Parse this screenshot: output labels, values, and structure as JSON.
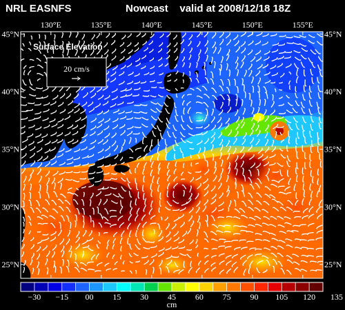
{
  "header": {
    "source": "NRL EASNFS",
    "product": "Nowcast",
    "valid": "valid at 2008/12/18 18Z"
  },
  "map": {
    "field": "Surface Elevation",
    "reference_vector_label": "20 cm/s",
    "lon_ticks": [
      "130°E",
      "135°E",
      "140°E",
      "145°E",
      "150°E",
      "155°E"
    ],
    "lat_ticks": [
      "45°N",
      "40°N",
      "35°N",
      "30°N",
      "25°N"
    ],
    "extent": {
      "lon": [
        127,
        157
      ],
      "lat": [
        23.8,
        45.2
      ]
    }
  },
  "colorbar": {
    "unit": "cm",
    "tick_labels": [
      "−30",
      "−15",
      "00",
      "15",
      "30",
      "45",
      "60",
      "75",
      "90",
      "105",
      "120",
      "135"
    ],
    "colors": [
      "#000080",
      "#0000b4",
      "#0000e6",
      "#1430ff",
      "#1e64ff",
      "#1e96ff",
      "#1ec8ff",
      "#00ffff",
      "#00e6b4",
      "#00d250",
      "#64e600",
      "#c8f000",
      "#ffff00",
      "#ffd200",
      "#ffa000",
      "#ff7800",
      "#ff5000",
      "#ff2800",
      "#e60000",
      "#b40000",
      "#8c0000",
      "#640000"
    ]
  }
}
